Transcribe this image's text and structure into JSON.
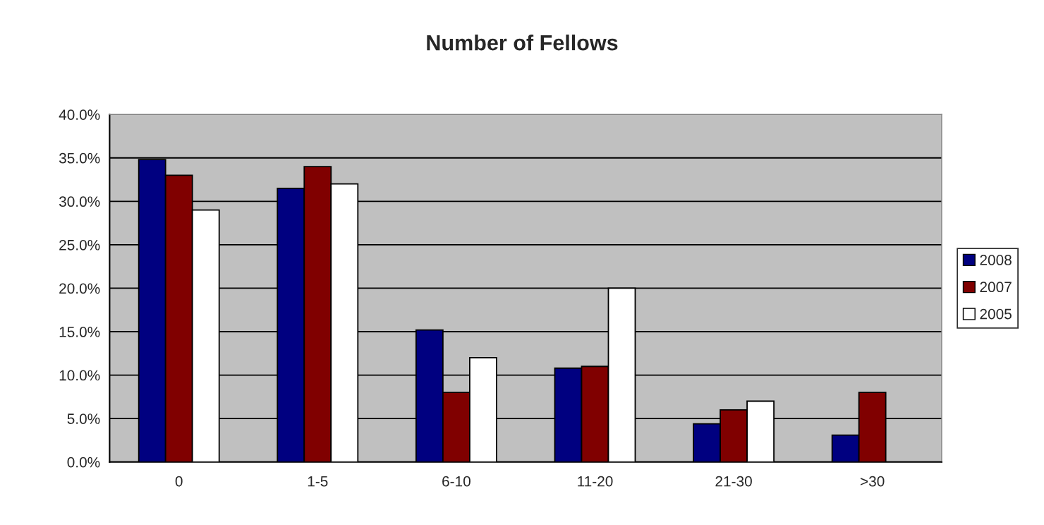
{
  "chart_data": {
    "type": "bar",
    "title": "Number of Fellows",
    "categories": [
      "0",
      "1-5",
      "6-10",
      "11-20",
      "21-30",
      ">30"
    ],
    "series": [
      {
        "name": "2008",
        "color": "#000080",
        "values": [
          34.8,
          31.5,
          15.2,
          10.8,
          4.4,
          3.1
        ]
      },
      {
        "name": "2007",
        "color": "#800000",
        "values": [
          33.0,
          34.0,
          8.0,
          11.0,
          6.0,
          8.0
        ]
      },
      {
        "name": "2005",
        "color": "#ffffff",
        "values": [
          29.0,
          32.0,
          12.0,
          20.0,
          7.0,
          null
        ]
      }
    ],
    "ylim": [
      0,
      40
    ],
    "yticks": [
      {
        "value": 0,
        "label": "0.0%"
      },
      {
        "value": 5,
        "label": "5.0%"
      },
      {
        "value": 10,
        "label": "10.0%"
      },
      {
        "value": 15,
        "label": "15.0%"
      },
      {
        "value": 20,
        "label": "20.0%"
      },
      {
        "value": 25,
        "label": "25.0%"
      },
      {
        "value": 30,
        "label": "30.0%"
      },
      {
        "value": 35,
        "label": "35.0%"
      },
      {
        "value": 40,
        "label": "40.0%"
      }
    ],
    "grid": "y",
    "legend": "right"
  }
}
